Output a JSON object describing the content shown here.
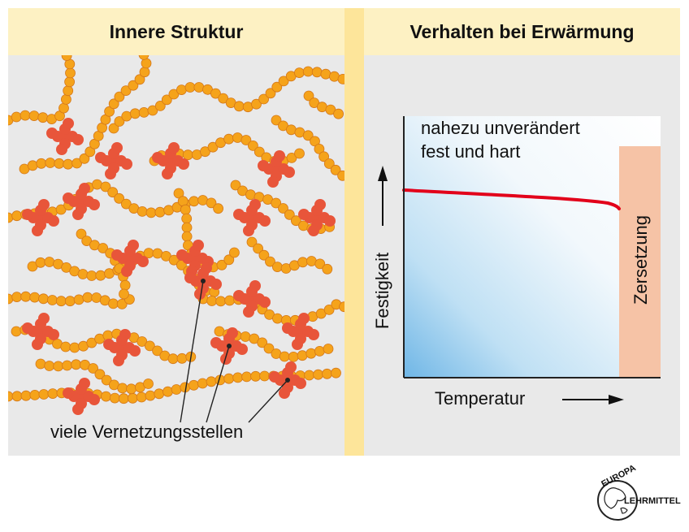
{
  "left_panel": {
    "title": "Innere Struktur",
    "callout_label": "viele Vernetzungsstellen"
  },
  "right_panel": {
    "title": "Verhalten bei Erwärmung",
    "note_line1": "nahezu unverändert",
    "note_line2": "fest und hart",
    "y_axis_label": "Festigkeit",
    "x_axis_label": "Temperatur",
    "decomposition_label": "Zersetzung"
  },
  "logo": {
    "text_top": "EUROPA",
    "text_right": "LEHRMITTEL"
  },
  "colors": {
    "chain_bead": "#f5a31b",
    "chain_bead_edge": "#d4771a",
    "crosslink": "#e8553a",
    "curve": "#e2001a",
    "decomposition_zone": "#f6c3a6",
    "header_bg": "#fdf1c3",
    "divider": "#fde59a"
  }
}
